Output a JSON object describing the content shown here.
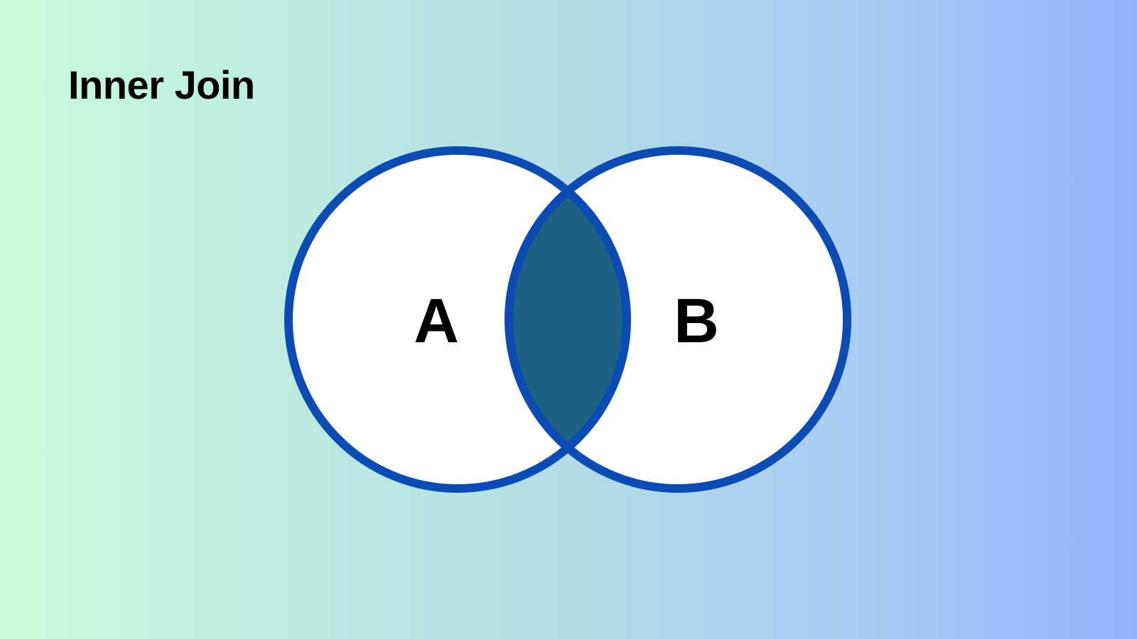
{
  "header": {
    "title": "Inner Join"
  },
  "diagram": {
    "type": "venn",
    "sets": [
      {
        "label": "A"
      },
      {
        "label": "B"
      }
    ],
    "highlight": "intersection",
    "colors": {
      "circle_fill": "#ffffff",
      "circle_stroke": "#0a4bb4",
      "intersection_fill": "#1e5f84",
      "background_left": "#c9fbdd",
      "background_right": "#91b4fd",
      "text": "#000000"
    }
  }
}
